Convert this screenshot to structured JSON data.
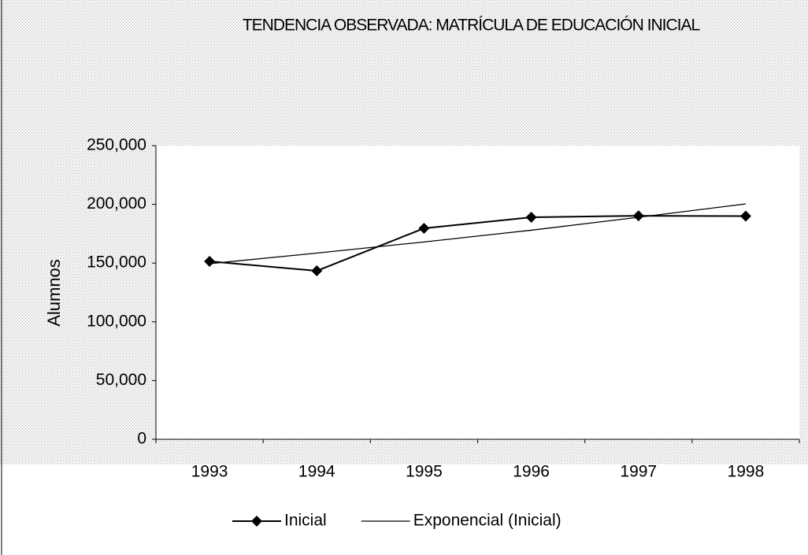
{
  "chart_data": {
    "type": "line",
    "title": "TENDENCIA OBSERVADA: MATRÍCULA DE EDUCACIÓN INICIAL",
    "y_label": "Alumnos",
    "categories": [
      "1993",
      "1994",
      "1995",
      "1996",
      "1997",
      "1998"
    ],
    "series": [
      {
        "name": "Inicial",
        "color": "#000000",
        "marker": "diamond",
        "values": [
          151500,
          143400,
          179600,
          189000,
          190300,
          190000
        ]
      },
      {
        "name": "Exponencial (Inicial)",
        "color": "#000000",
        "marker": "none",
        "values": [
          149500,
          158500,
          168000,
          178000,
          189000,
          200400
        ]
      }
    ],
    "ylim": [
      0,
      250000
    ],
    "yticks": [
      0,
      {
        "value": 50000,
        "label": "50,000"
      },
      {
        "value": 100000,
        "label": "100,000"
      },
      {
        "value": 150000,
        "label": "150,000"
      },
      {
        "value": 200000,
        "label": "200,000"
      },
      {
        "value": 250000,
        "label": "250,000"
      }
    ],
    "grid": false,
    "legend": "bottom"
  }
}
